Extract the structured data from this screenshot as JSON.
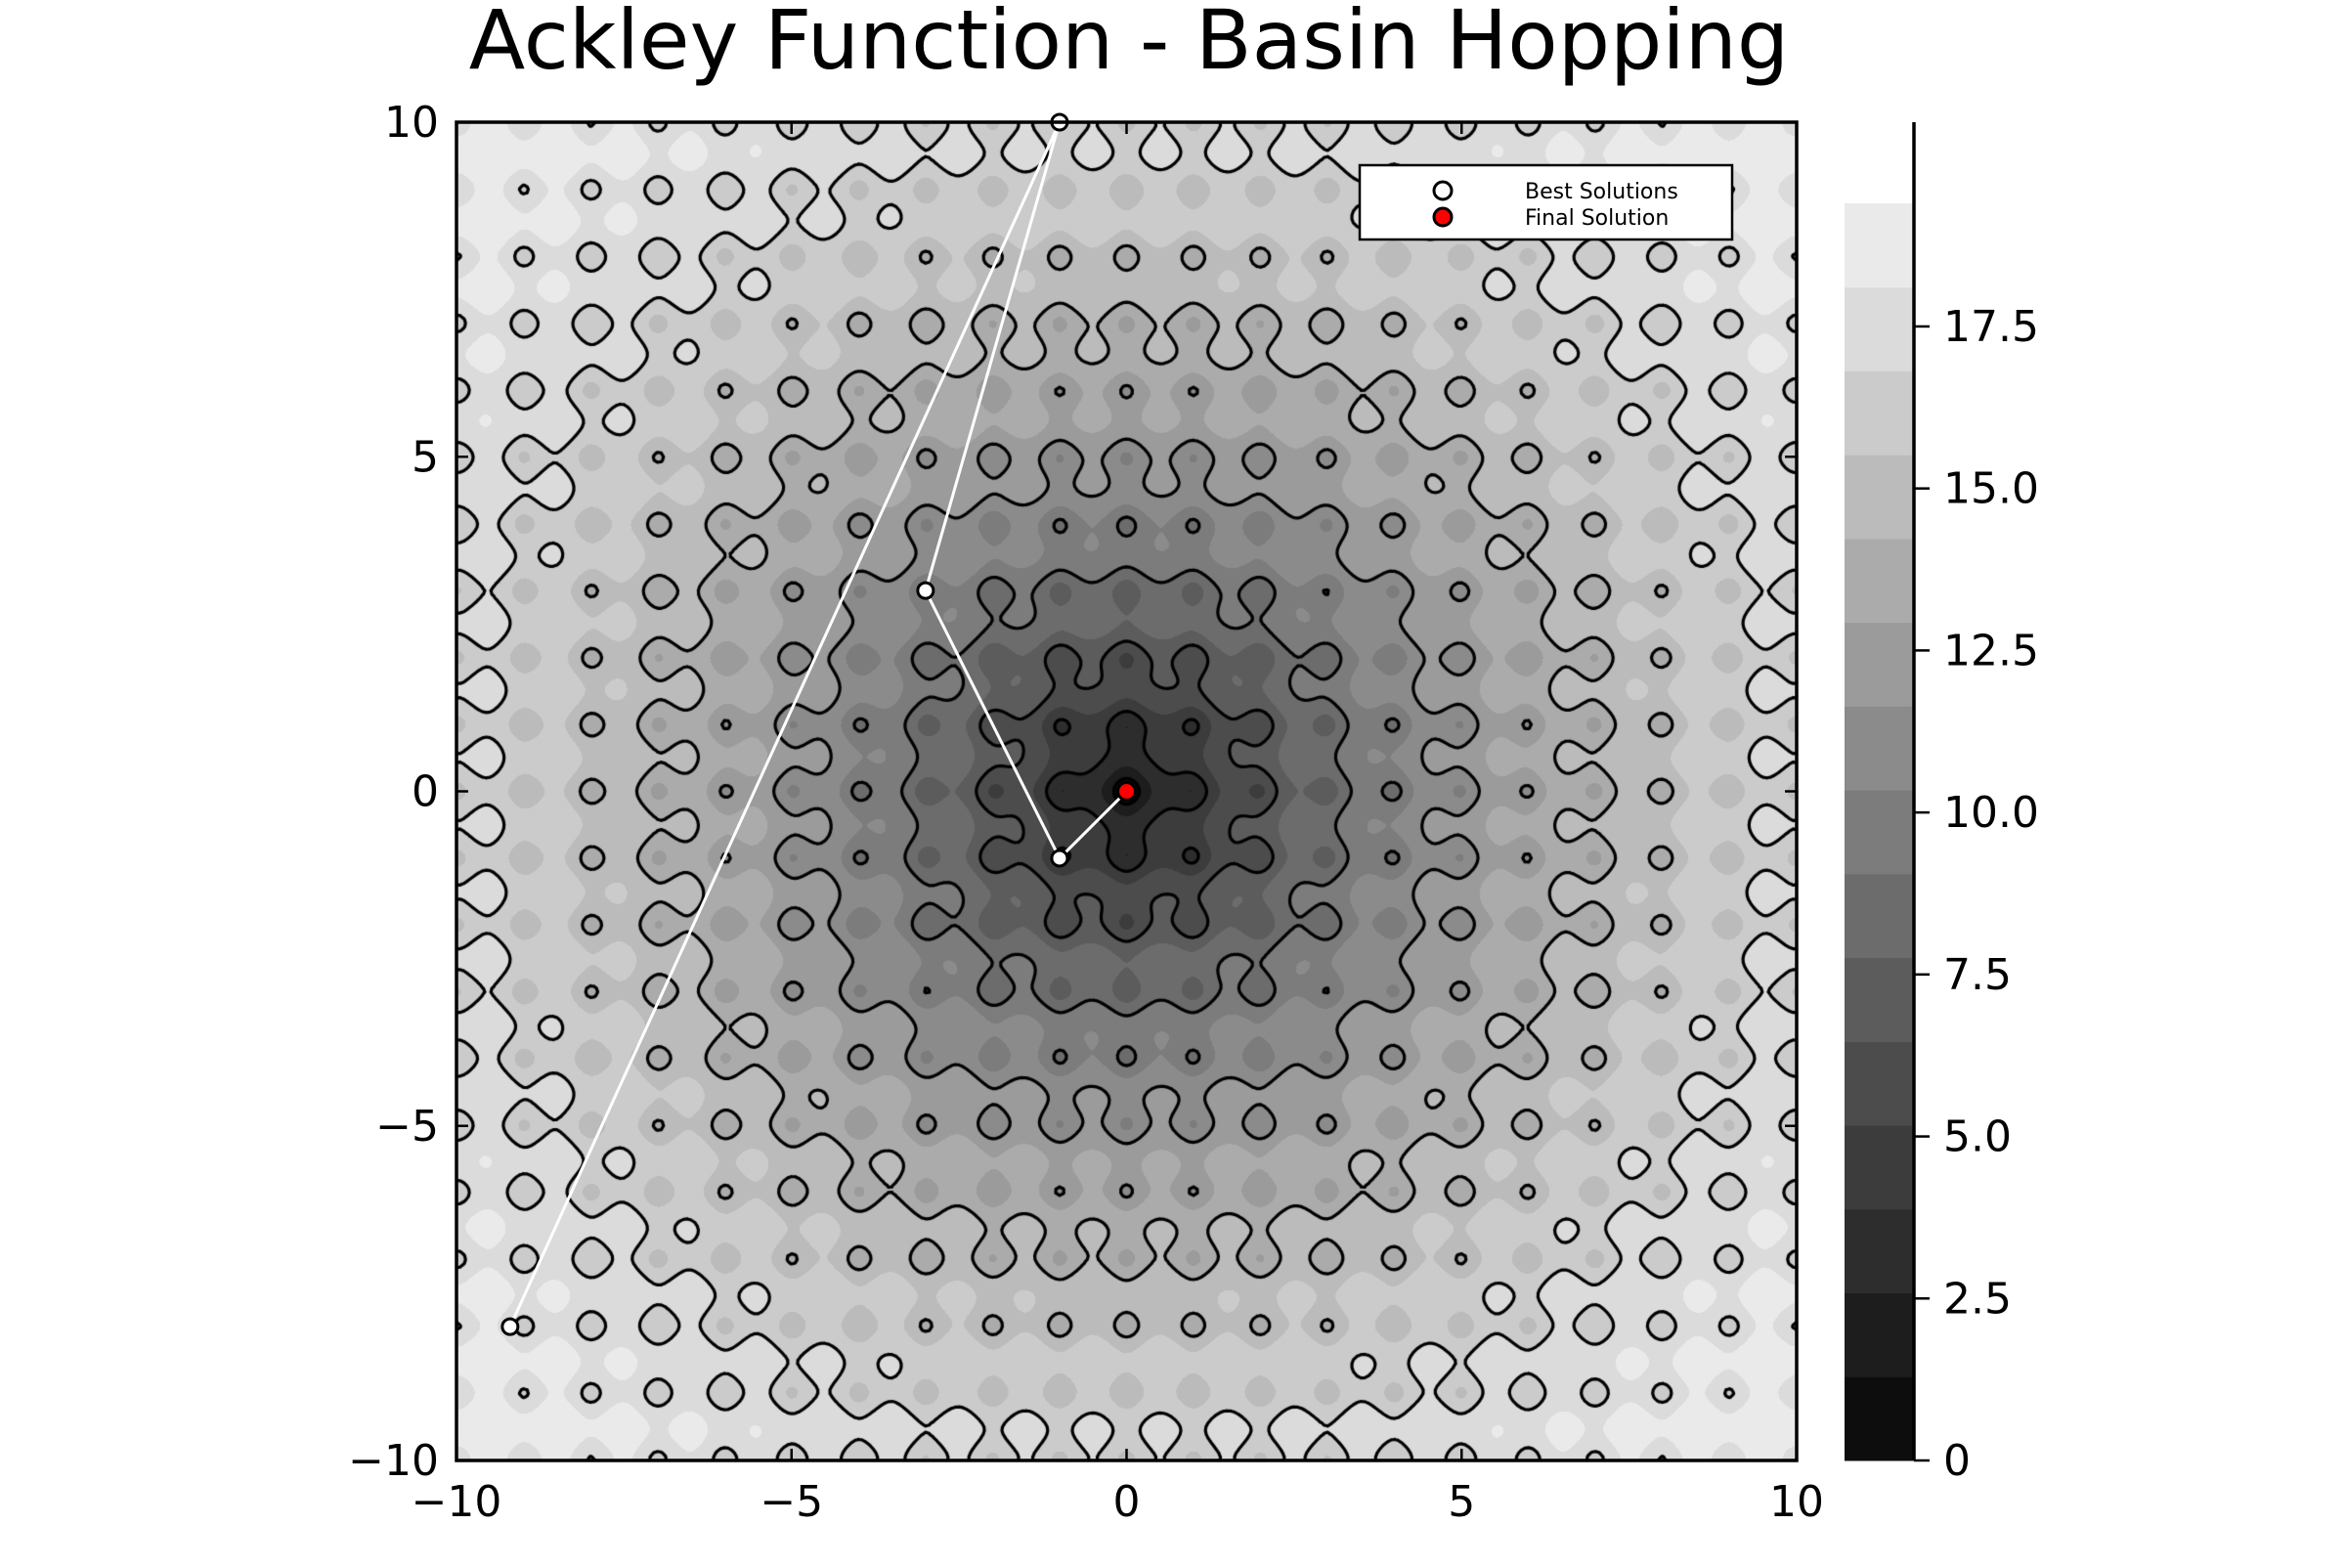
{
  "chart_data": {
    "type": "heatmap",
    "subtype": "filled-contour with path overlay",
    "title": "Ackley Function - Basin Hopping",
    "xlabel": "",
    "ylabel": "",
    "xlim": [
      -10,
      10
    ],
    "ylim": [
      -10,
      10
    ],
    "x_ticks": [
      -10,
      -5,
      0,
      5,
      10
    ],
    "y_ticks": [
      -10,
      -5,
      0,
      5,
      10
    ],
    "x_tick_labels": [
      "−10",
      "−5",
      "0",
      "5",
      "10"
    ],
    "y_tick_labels": [
      "−10",
      "−5",
      "0",
      "5",
      "10"
    ],
    "grid": false,
    "function": "ackley",
    "colormap": "grays",
    "colorbar": {
      "range": [
        0,
        19.4
      ],
      "levels": 15,
      "ticks": [
        0,
        2.5,
        5.0,
        7.5,
        10.0,
        12.5,
        15.0,
        17.5
      ],
      "tick_labels": [
        "0",
        "2.5",
        "5.0",
        "7.5",
        "10.0",
        "12.5",
        "15.0",
        "17.5"
      ]
    },
    "contour_line_color": "#000000",
    "series": [
      {
        "name": "Best Solutions",
        "type": "line+scatter",
        "color": "#ffffff",
        "x": [
          -9.2,
          -1.0,
          -3.0,
          -1.0,
          0.0
        ],
        "y": [
          -8.0,
          10.0,
          3.0,
          -1.0,
          0.0
        ]
      },
      {
        "name": "Final Solution",
        "type": "scatter",
        "color": "#ff0000",
        "x": [
          0.0
        ],
        "y": [
          0.0
        ]
      }
    ],
    "legend_position": "top-right"
  }
}
